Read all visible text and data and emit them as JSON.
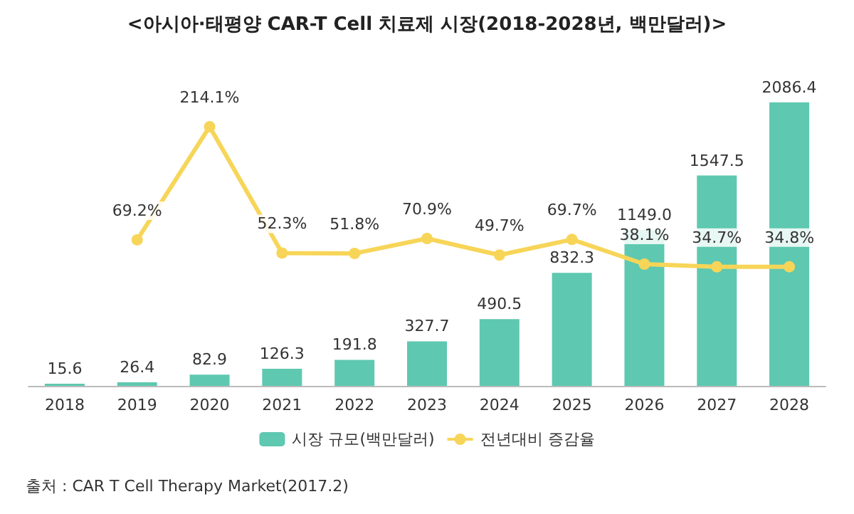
{
  "chart_data": {
    "type": "bar",
    "title": "<아시아·태평양 CAR-T Cell 치료제 시장(2018-2028년, 백만달러)>",
    "categories": [
      "2018",
      "2019",
      "2020",
      "2021",
      "2022",
      "2023",
      "2024",
      "2025",
      "2026",
      "2027",
      "2028"
    ],
    "series": [
      {
        "name": "시장 규모(백만달러)",
        "color": "#5ec8b0",
        "values": [
          15.6,
          26.4,
          82.9,
          126.3,
          191.8,
          327.7,
          490.5,
          832.3,
          1149.0,
          1547.5,
          2086.4
        ],
        "value_labels": [
          "15.6",
          "26.4",
          "82.9",
          "126.3",
          "191.8",
          "327.7",
          "490.5",
          "832.3",
          "1149.0",
          "1547.5",
          "2086.4"
        ]
      },
      {
        "name": "전년대비 증감율",
        "type": "line",
        "axis": "y2",
        "color": "#f7d558",
        "marker": "circle",
        "values": [
          null,
          69.2,
          214.1,
          52.3,
          51.8,
          70.9,
          49.7,
          69.7,
          38.1,
          34.7,
          34.8
        ],
        "value_labels": [
          null,
          "69.2%",
          "214.1%",
          "52.3%",
          "51.8%",
          "70.9%",
          "49.7%",
          "69.7%",
          "38.1%",
          "34.7%",
          "34.8%"
        ]
      }
    ],
    "grid": false,
    "legend": "bottom",
    "annotations": [
      "출처 : CAR T Cell Therapy Market(2017.2)"
    ]
  }
}
